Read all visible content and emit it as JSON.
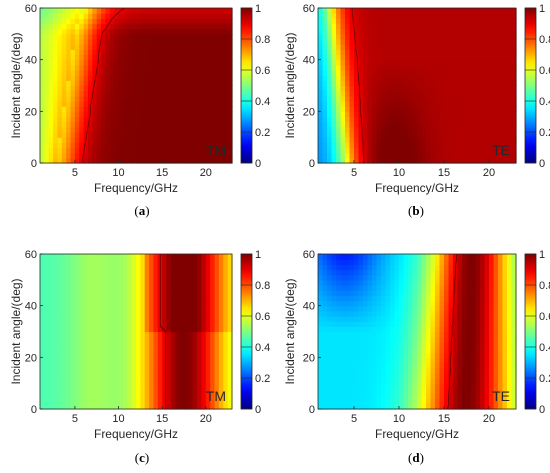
{
  "colors": {
    "colormap": "jet",
    "colormap_stops": [
      "#00007f",
      "#0000ff",
      "#007fff",
      "#00ffff",
      "#7fff7f",
      "#ffff00",
      "#ff7f00",
      "#ff0000",
      "#7f0000"
    ],
    "axis": "#262626",
    "contour": "#000000"
  },
  "chart_data": [
    {
      "type": "heatmap",
      "panel": "(a)",
      "panel_letter": "a",
      "pol_label": "TM",
      "xlabel": "Frequency/GHz",
      "ylabel": "Incident angle/(deg)",
      "xlim": [
        1,
        23
      ],
      "ylim": [
        0,
        60
      ],
      "xticks": [
        5,
        10,
        15,
        20
      ],
      "yticks": [
        0,
        20,
        40,
        60
      ],
      "clim": [
        0,
        1
      ],
      "cticks": [
        0,
        0.2,
        0.4,
        0.6,
        0.8,
        1
      ],
      "cticklabels": [
        "0",
        "0.2",
        "0.4",
        "0.6",
        "0.8",
        "1"
      ],
      "model": "tm1",
      "contour_level": 0.9
    },
    {
      "type": "heatmap",
      "panel": "(b)",
      "panel_letter": "b",
      "pol_label": "TE",
      "xlabel": "Frequency/GHz",
      "ylabel": "Incident angle/(deg)",
      "xlim": [
        1,
        23
      ],
      "ylim": [
        0,
        60
      ],
      "xticks": [
        5,
        10,
        15,
        20
      ],
      "yticks": [
        0,
        20,
        40,
        60
      ],
      "clim": [
        0,
        1
      ],
      "cticks": [
        0,
        0.2,
        0.4,
        0.6,
        0.8,
        1
      ],
      "cticklabels": [
        "0",
        "0.2",
        "0.4",
        "0.6",
        "0.8",
        "1"
      ],
      "model": "te1",
      "contour_level": 0.9
    },
    {
      "type": "heatmap",
      "panel": "(c)",
      "panel_letter": "c",
      "pol_label": "TM",
      "xlabel": "Frequency/GHz",
      "ylabel": "Incident angle/(deg)",
      "xlim": [
        1,
        23
      ],
      "ylim": [
        0,
        60
      ],
      "xticks": [
        5,
        10,
        15,
        20
      ],
      "yticks": [
        0,
        20,
        40,
        60
      ],
      "clim": [
        0,
        1
      ],
      "cticks": [
        0,
        0.2,
        0.4,
        0.6,
        0.8,
        1
      ],
      "cticklabels": [
        "0",
        "0.2",
        "0.4",
        "0.6",
        "0.8",
        "1"
      ],
      "model": "tm2",
      "contour_level": 0.9
    },
    {
      "type": "heatmap",
      "panel": "(d)",
      "panel_letter": "d",
      "pol_label": "TE",
      "xlabel": "Frequency/GHz",
      "ylabel": "Incident angle/(deg)",
      "xlim": [
        1,
        23
      ],
      "ylim": [
        0,
        60
      ],
      "xticks": [
        5,
        10,
        15,
        20
      ],
      "yticks": [
        0,
        20,
        40,
        60
      ],
      "clim": [
        0,
        1
      ],
      "cticks": [
        0,
        0.2,
        0.4,
        0.6,
        0.8,
        1
      ],
      "cticklabels": [
        "0",
        "0.2",
        "0.4",
        "0.6",
        "0.8",
        "1"
      ],
      "model": "te2",
      "contour_level": 0.9
    }
  ]
}
